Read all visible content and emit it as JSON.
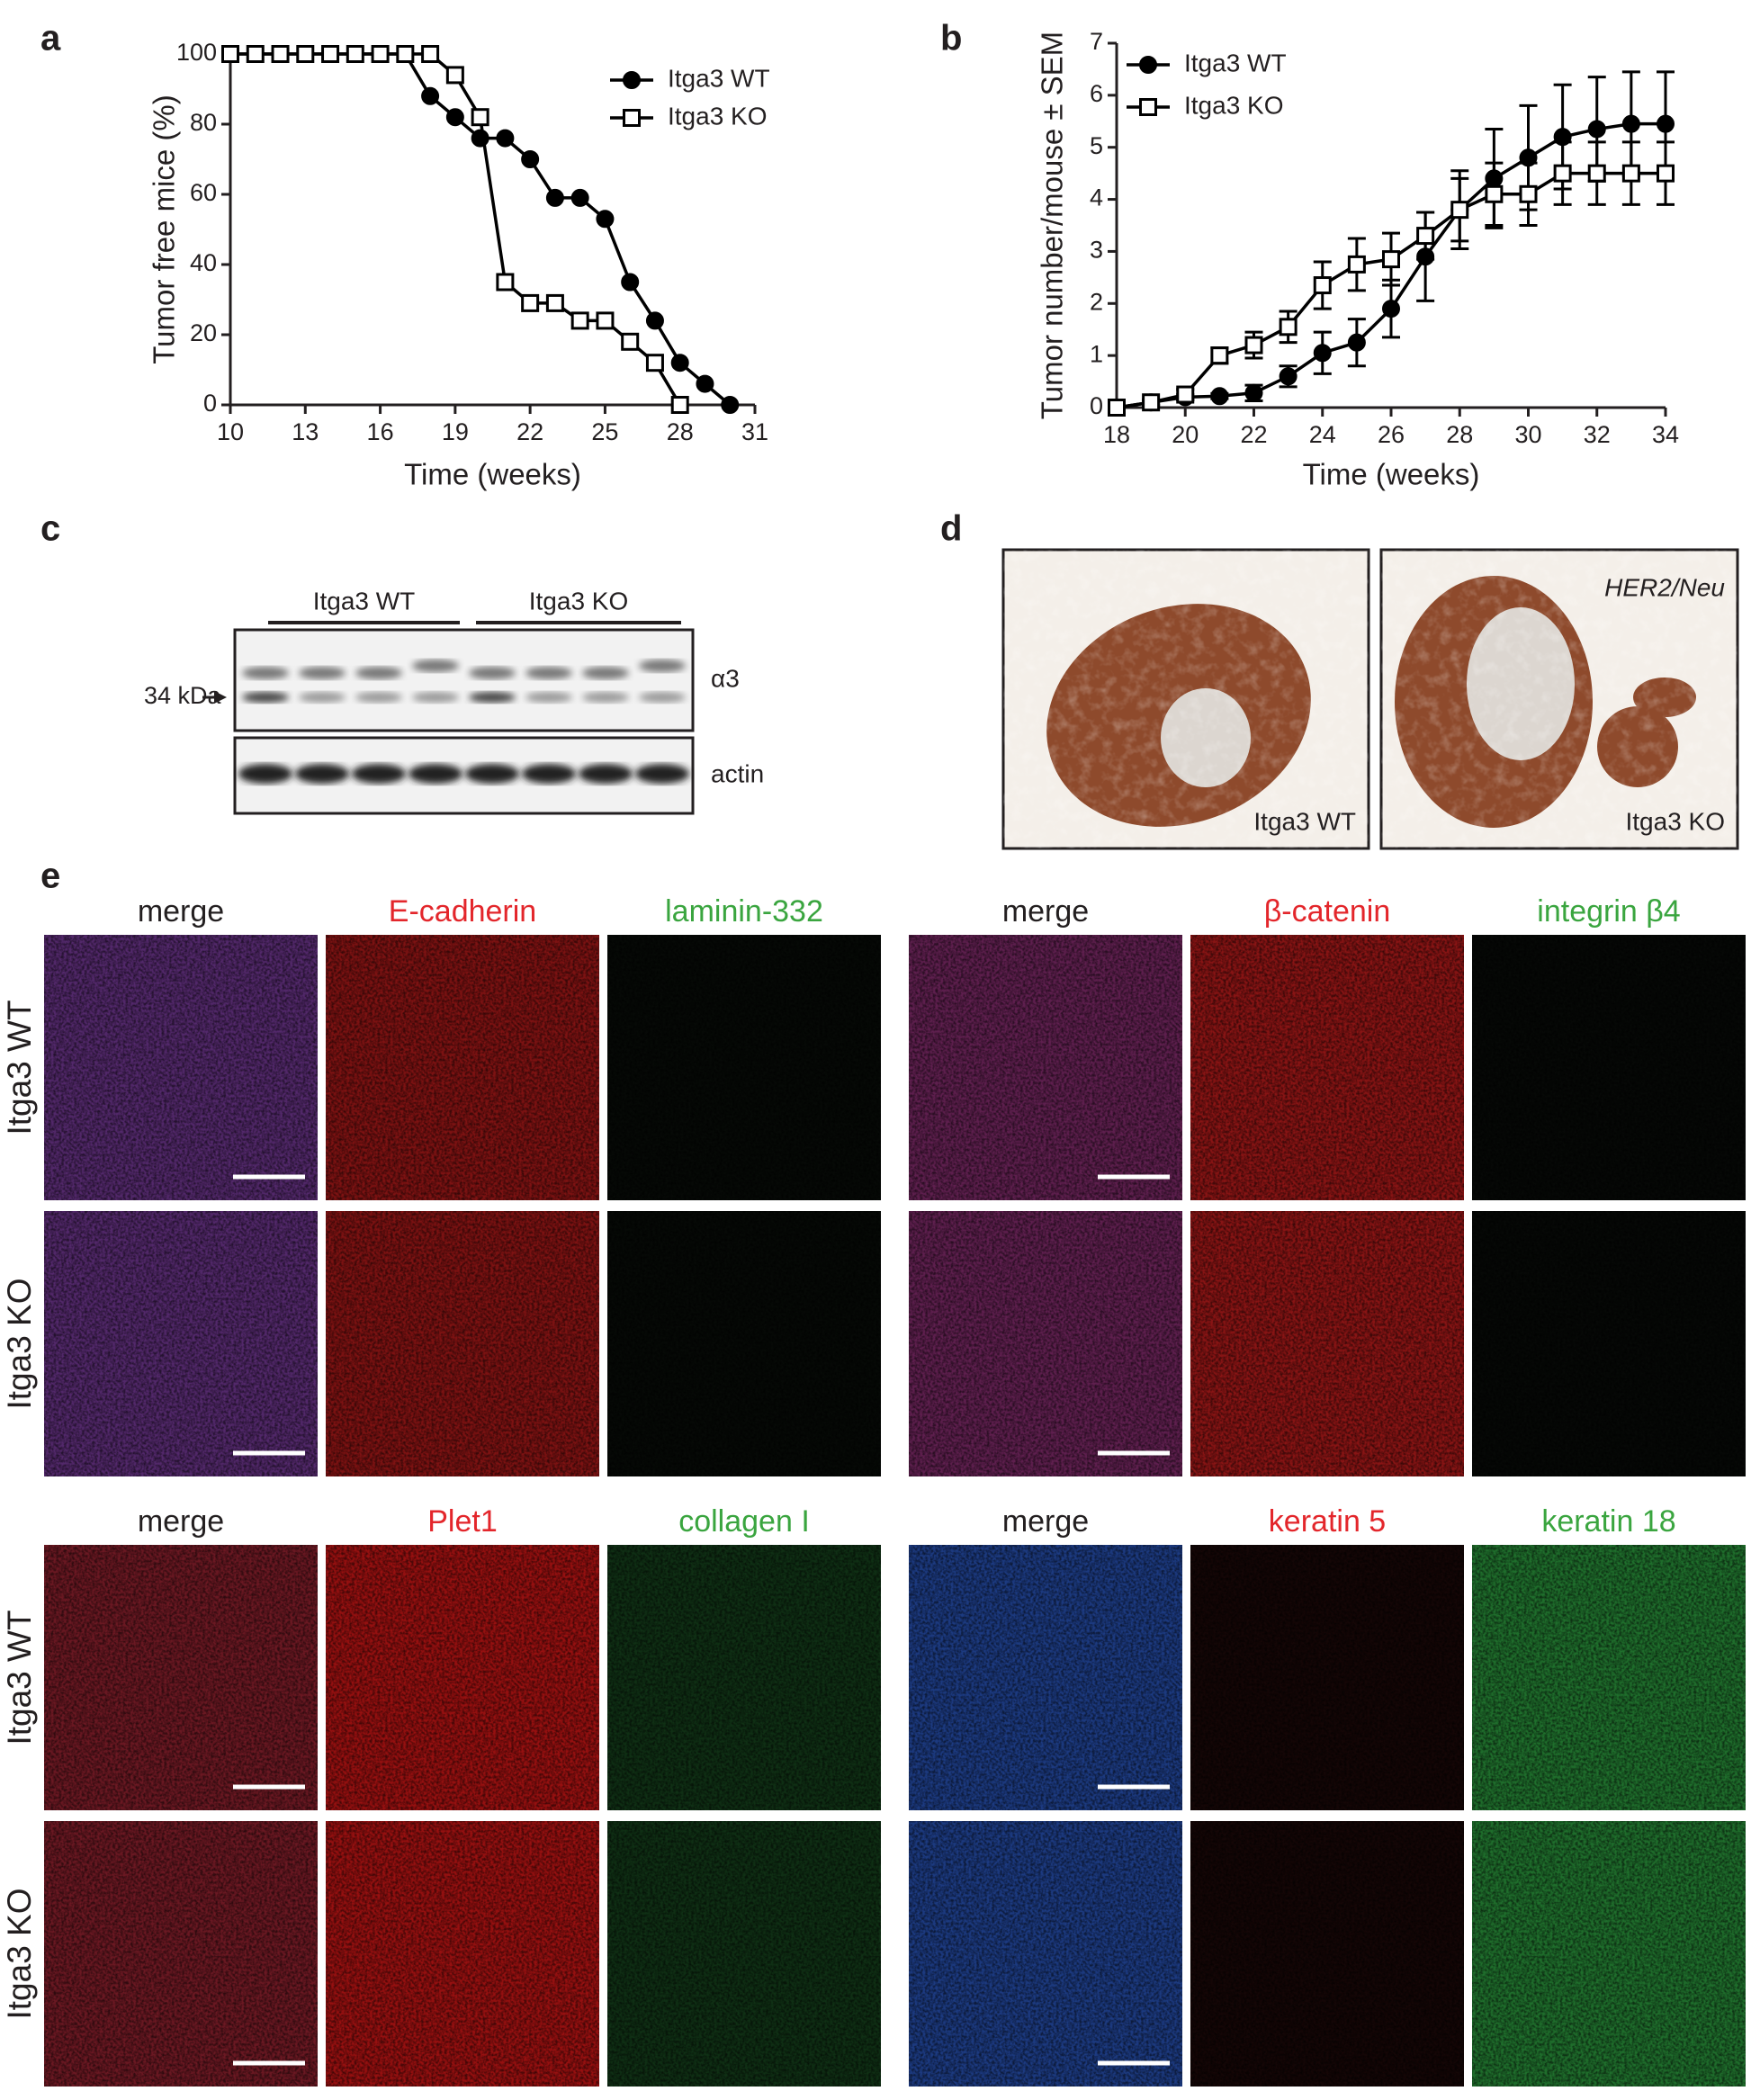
{
  "chart_data": [
    {
      "type": "line",
      "panel_label": "a",
      "x_label": "Time (weeks)",
      "y_label": "Tumor free mice (%)",
      "x": [
        10,
        11,
        12,
        13,
        14,
        15,
        16,
        17,
        18,
        19,
        20,
        21,
        22,
        23,
        24,
        25,
        26,
        27,
        28,
        29,
        30
      ],
      "series": [
        {
          "name": "Itga3 WT",
          "color": "#000000",
          "marker": "filled-circle",
          "values": [
            100,
            100,
            100,
            100,
            100,
            100,
            100,
            100,
            88,
            82,
            76,
            76,
            70,
            59,
            59,
            53,
            35,
            24,
            12,
            6,
            0
          ]
        },
        {
          "name": "Itga3 KO",
          "color": "#000000",
          "marker": "open-square",
          "values": [
            100,
            100,
            100,
            100,
            100,
            100,
            100,
            100,
            100,
            94,
            82,
            35,
            29,
            29,
            24,
            24,
            18,
            12,
            0,
            null,
            null
          ]
        }
      ],
      "xlim": [
        10,
        31
      ],
      "ylim": [
        0,
        100
      ],
      "xticks": [
        10,
        13,
        16,
        19,
        22,
        25,
        28,
        31
      ],
      "yticks": [
        0,
        20,
        40,
        60,
        80,
        100
      ],
      "legend": "upper right"
    },
    {
      "type": "line",
      "panel_label": "b",
      "x_label": "Time (weeks)",
      "y_label": "Tumor number/mouse ± SEM",
      "x": [
        18,
        19,
        20,
        21,
        22,
        23,
        24,
        25,
        26,
        27,
        28,
        29,
        30,
        31,
        32,
        33,
        34
      ],
      "series": [
        {
          "name": "Itga3 WT",
          "color": "#000000",
          "marker": "filled-circle",
          "values": [
            0,
            0.1,
            0.2,
            0.22,
            0.28,
            0.6,
            1.05,
            1.25,
            1.9,
            2.9,
            3.8,
            4.4,
            4.8,
            5.2,
            5.35,
            5.45,
            5.45
          ],
          "errors": [
            0,
            0.05,
            0.05,
            0.05,
            0.15,
            0.2,
            0.4,
            0.45,
            0.55,
            0.85,
            0.75,
            0.95,
            1.0,
            1.0,
            1.0,
            1.0,
            1.0
          ]
        },
        {
          "name": "Itga3 KO",
          "color": "#000000",
          "marker": "open-square",
          "values": [
            0,
            0.1,
            0.25,
            1.0,
            1.2,
            1.55,
            2.35,
            2.75,
            2.85,
            3.3,
            3.8,
            4.1,
            4.1,
            4.5,
            4.5,
            4.5,
            4.5
          ],
          "errors": [
            0,
            0.05,
            0.1,
            0.15,
            0.25,
            0.3,
            0.45,
            0.5,
            0.5,
            0.45,
            0.6,
            0.6,
            0.6,
            0.6,
            0.6,
            0.6,
            0.6
          ]
        }
      ],
      "xlim": [
        18,
        34
      ],
      "ylim": [
        0,
        7
      ],
      "xticks": [
        18,
        20,
        22,
        24,
        26,
        28,
        30,
        32,
        34
      ],
      "yticks": [
        0,
        1,
        2,
        3,
        4,
        5,
        6,
        7
      ],
      "legend": "upper left"
    }
  ],
  "panel_c": {
    "panel_label": "c",
    "groups": [
      "Itga3 WT",
      "Itga3 KO"
    ],
    "marker": "34 kDa",
    "blots": [
      "α3",
      "actin"
    ]
  },
  "panel_d": {
    "panel_label": "d",
    "images": [
      {
        "label": "Itga3 WT"
      },
      {
        "label": "Itga3 KO",
        "annotation": "HER2/Neu"
      }
    ]
  },
  "panel_e": {
    "panel_label": "e",
    "rows": [
      "Itga3 WT",
      "Itga3 KO"
    ],
    "blocks": [
      [
        "merge",
        "E-cadherin",
        "laminin-332"
      ],
      [
        "merge",
        "β-catenin",
        "integrin β4"
      ],
      [
        "merge",
        "Plet1",
        "collagen I"
      ],
      [
        "merge",
        "keratin 5",
        "keratin 18"
      ]
    ]
  }
}
